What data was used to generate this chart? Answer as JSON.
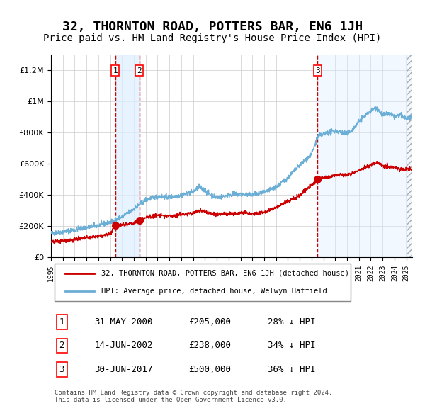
{
  "title": "32, THORNTON ROAD, POTTERS BAR, EN6 1JH",
  "subtitle": "Price paid vs. HM Land Registry's House Price Index (HPI)",
  "title_fontsize": 13,
  "subtitle_fontsize": 10,
  "background_color": "#ffffff",
  "plot_bg_color": "#ffffff",
  "grid_color": "#cccccc",
  "hpi_line_color": "#6baed6",
  "price_line_color": "#cc0000",
  "transaction_marker_color": "#cc0000",
  "shade_color": "#ddeeff",
  "dashed_line_color": "#cc0000",
  "ylim": [
    0,
    1300000
  ],
  "ytick_values": [
    0,
    200000,
    400000,
    600000,
    800000,
    1000000,
    1200000
  ],
  "ytick_labels": [
    "£0",
    "£200K",
    "£400K",
    "£600K",
    "£800K",
    "£1M",
    "£1.2M"
  ],
  "xlim_start": 1995.0,
  "xlim_end": 2025.5,
  "transactions": [
    {
      "num": 1,
      "date_num": 2000.42,
      "price": 205000,
      "date_str": "31-MAY-2000",
      "pct": "28%",
      "direction": "↓"
    },
    {
      "num": 2,
      "date_num": 2002.45,
      "price": 238000,
      "date_str": "14-JUN-2002",
      "pct": "34%",
      "direction": "↓"
    },
    {
      "num": 3,
      "date_num": 2017.5,
      "price": 500000,
      "date_str": "30-JUN-2017",
      "pct": "36%",
      "direction": "↓"
    }
  ],
  "legend_label_price": "32, THORNTON ROAD, POTTERS BAR, EN6 1JH (detached house)",
  "legend_label_hpi": "HPI: Average price, detached house, Welwyn Hatfield",
  "footer": "Contains HM Land Registry data © Crown copyright and database right 2024.\nThis data is licensed under the Open Government Licence v3.0.",
  "xtick_years": [
    1995,
    1996,
    1997,
    1998,
    1999,
    2000,
    2001,
    2002,
    2003,
    2004,
    2005,
    2006,
    2007,
    2008,
    2009,
    2010,
    2011,
    2012,
    2013,
    2014,
    2015,
    2016,
    2017,
    2018,
    2019,
    2020,
    2021,
    2022,
    2023,
    2024,
    2025
  ]
}
